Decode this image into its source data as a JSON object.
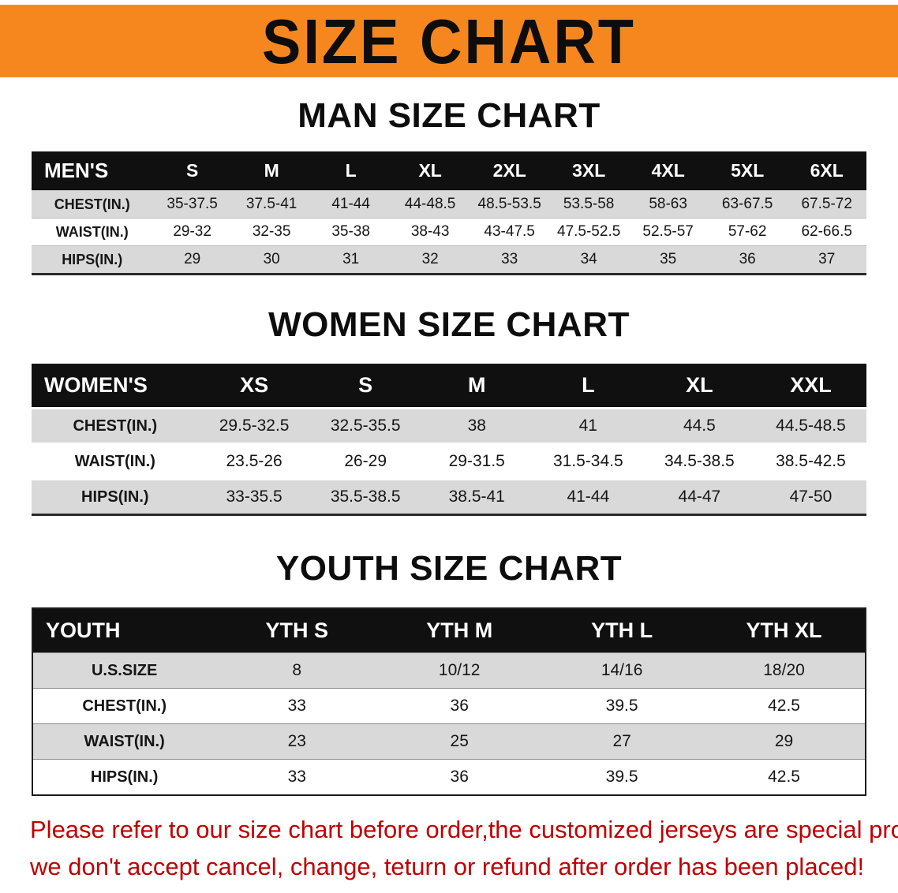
{
  "banner": {
    "title": "SIZE CHART",
    "bg_color": "#f6871f",
    "text_color": "#0d0d0d"
  },
  "sections": [
    {
      "heading": "MAN SIZE CHART",
      "table": {
        "header": [
          "MEN'S",
          "S",
          "M",
          "L",
          "XL",
          "2XL",
          "3XL",
          "4XL",
          "5XL",
          "6XL"
        ],
        "rows": [
          [
            "CHEST(IN.)",
            "35-37.5",
            "37.5-41",
            "41-44",
            "44-48.5",
            "48.5-53.5",
            "53.5-58",
            "58-63",
            "63-67.5",
            "67.5-72"
          ],
          [
            "WAIST(IN.)",
            "29-32",
            "32-35",
            "35-38",
            "38-43",
            "43-47.5",
            "47.5-52.5",
            "52.5-57",
            "57-62",
            "62-66.5"
          ],
          [
            "HIPS(IN.)",
            "29",
            "30",
            "31",
            "32",
            "33",
            "34",
            "35",
            "36",
            "37"
          ]
        ]
      }
    },
    {
      "heading": "WOMEN SIZE CHART",
      "table": {
        "header": [
          "WOMEN'S",
          "XS",
          "S",
          "M",
          "L",
          "XL",
          "XXL"
        ],
        "rows": [
          [
            "CHEST(IN.)",
            "29.5-32.5",
            "32.5-35.5",
            "38",
            "41",
            "44.5",
            "44.5-48.5"
          ],
          [
            "WAIST(IN.)",
            "23.5-26",
            "26-29",
            "29-31.5",
            "31.5-34.5",
            "34.5-38.5",
            "38.5-42.5"
          ],
          [
            "HIPS(IN.)",
            "33-35.5",
            "35.5-38.5",
            "38.5-41",
            "41-44",
            "44-47",
            "47-50"
          ]
        ]
      }
    },
    {
      "heading": "YOUTH SIZE CHART",
      "table": {
        "header": [
          "YOUTH",
          "YTH S",
          "YTH M",
          "YTH L",
          "YTH XL"
        ],
        "rows": [
          [
            "U.S.SIZE",
            "8",
            "10/12",
            "14/16",
            "18/20"
          ],
          [
            "CHEST(IN.)",
            "33",
            "36",
            "39.5",
            "42.5"
          ],
          [
            "WAIST(IN.)",
            "23",
            "25",
            "27",
            "29"
          ],
          [
            "HIPS(IN.)",
            "33",
            "36",
            "39.5",
            "42.5"
          ]
        ]
      }
    }
  ],
  "disclaimer": {
    "line1": "Please refer to our size chart before order,the customized jerseys are special products,",
    "line2": "we don't accept cancel, change, teturn or refund after order has been placed!",
    "color": "#c00000"
  }
}
